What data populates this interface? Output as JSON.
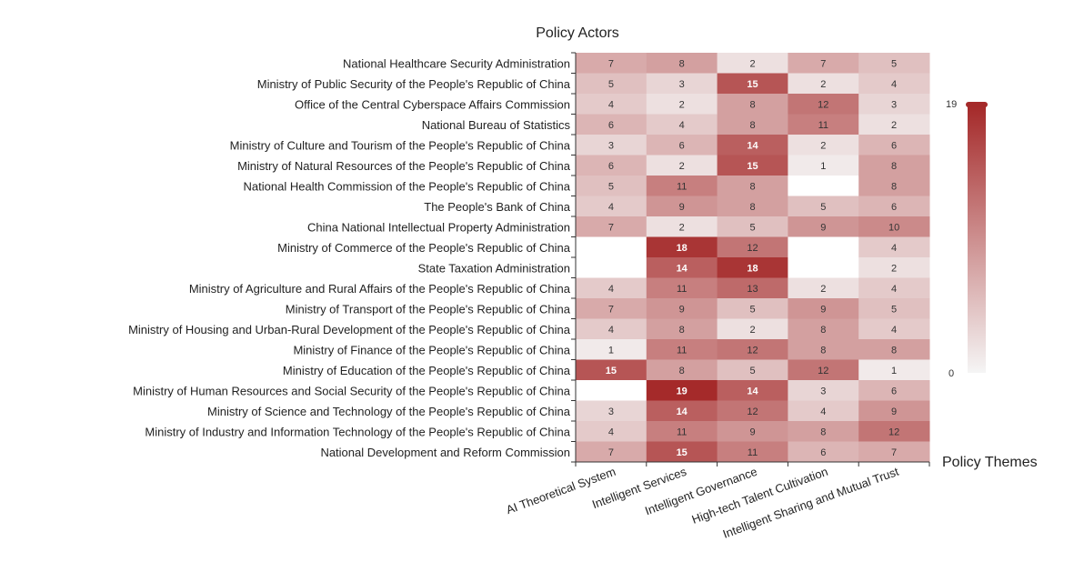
{
  "chart_data": {
    "type": "heatmap",
    "ylabel": "Policy Actors",
    "xlabel": "Policy Themes",
    "x_categories": [
      "AI Theoretical System",
      "Intelligent Services",
      "Intelligent Governance",
      "High-tech Talent Cultivation",
      "Intelligent Sharing and Mutual Trust"
    ],
    "y_categories": [
      "National Healthcare Security Administration",
      "Ministry of Public Security of the People's Republic of China",
      "Office of the Central Cyberspace Affairs Commission",
      "National Bureau of Statistics",
      "Ministry of Culture and Tourism of the People's Republic of China",
      "Ministry of Natural Resources of the People's Republic of China",
      "National Health Commission of the People's Republic of China",
      "The People's Bank of China",
      "China National Intellectual Property Administration",
      "Ministry of Commerce of the People's Republic of China",
      "State Taxation Administration",
      "Ministry of Agriculture and Rural Affairs of the People's Republic of China",
      "Ministry of Transport of the People's Republic of China",
      "Ministry of Housing and Urban-Rural Development of the People's Republic of China",
      "Ministry of Finance of the People's Republic of China",
      "Ministry of Education of the People's Republic of China",
      "Ministry of Human Resources and Social Security of the People's Republic of China",
      "Ministry of Science and Technology of the People's Republic of China",
      "Ministry of Industry and Information Technology of the People's Republic of China",
      "National Development and Reform Commission"
    ],
    "values": [
      [
        7,
        8,
        2,
        7,
        5
      ],
      [
        5,
        3,
        15,
        2,
        4
      ],
      [
        4,
        2,
        8,
        12,
        3
      ],
      [
        6,
        4,
        8,
        11,
        2
      ],
      [
        3,
        6,
        14,
        2,
        6
      ],
      [
        6,
        2,
        15,
        1,
        8
      ],
      [
        5,
        11,
        8,
        null,
        8
      ],
      [
        4,
        9,
        8,
        5,
        6
      ],
      [
        7,
        2,
        5,
        9,
        10
      ],
      [
        null,
        18,
        12,
        null,
        4
      ],
      [
        null,
        14,
        18,
        null,
        2
      ],
      [
        4,
        11,
        13,
        2,
        4
      ],
      [
        7,
        9,
        5,
        9,
        5
      ],
      [
        4,
        8,
        2,
        8,
        4
      ],
      [
        1,
        11,
        12,
        8,
        8
      ],
      [
        15,
        8,
        5,
        12,
        1
      ],
      [
        null,
        19,
        14,
        3,
        6
      ],
      [
        3,
        14,
        12,
        4,
        9
      ],
      [
        4,
        11,
        9,
        8,
        12
      ],
      [
        7,
        15,
        11,
        6,
        7
      ]
    ],
    "visual_map": {
      "min": 0,
      "max": 19,
      "min_label": "0",
      "max_label": "19",
      "color_low": "#f5f5f5",
      "color_high": "#a52a2a"
    },
    "grid": false
  }
}
